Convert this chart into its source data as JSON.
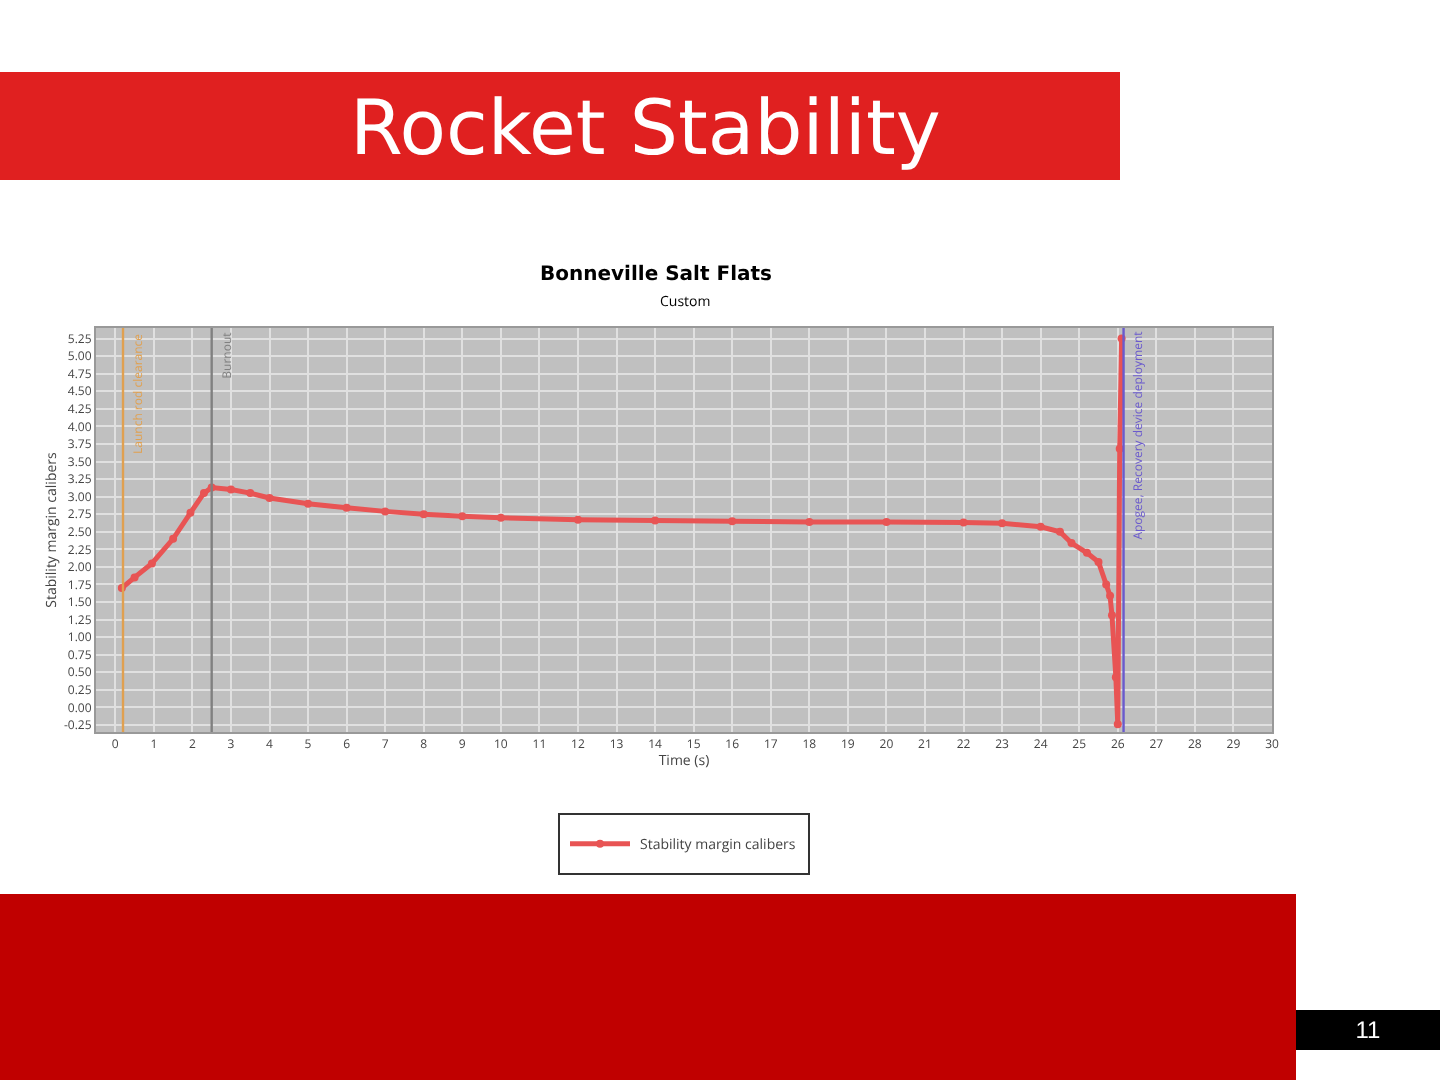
{
  "chart_data": {
    "type": "line",
    "title": "Rocket Stability",
    "subtitle": "Bonneville Salt Flats",
    "xlabel": "Time (s)",
    "ylabel": "Stability margin calibers",
    "annotations": [
      "Custom",
      "11"
    ],
    "x": [
      0.17,
      0.5,
      0.95,
      1.5,
      1.95,
      2.3,
      2.5,
      3,
      3.5,
      4,
      5,
      6,
      7,
      8,
      9,
      10,
      12,
      14,
      16,
      18,
      20,
      22,
      23,
      24,
      24.5,
      24.8,
      25.2,
      25.5,
      25.7,
      25.8,
      25.85,
      25.95,
      26.0,
      26.05,
      26.1
    ],
    "series": [
      {
        "name": "Stability margin calibers",
        "color": "#e85454",
        "values": [
          1.7,
          1.85,
          2.05,
          2.4,
          2.77,
          3.05,
          3.13,
          3.1,
          3.05,
          2.98,
          2.9,
          2.84,
          2.79,
          2.75,
          2.72,
          2.7,
          2.67,
          2.66,
          2.65,
          2.64,
          2.64,
          2.63,
          2.62,
          2.57,
          2.5,
          2.34,
          2.2,
          2.07,
          1.75,
          1.59,
          1.31,
          0.43,
          -0.24,
          3.68,
          5.25
        ]
      }
    ],
    "xlim": [
      -0.5,
      30
    ],
    "xticks": [
      0,
      1,
      2,
      3,
      4,
      5,
      6,
      7,
      8,
      9,
      10,
      11,
      12,
      13,
      14,
      15,
      16,
      17,
      18,
      19,
      20,
      21,
      22,
      23,
      24,
      25,
      26,
      27,
      28,
      29,
      30
    ],
    "ylim": [
      -0.35,
      5.4
    ],
    "yticks": [
      {
        "value": -0.25,
        "label": "-0.25"
      },
      {
        "value": 0,
        "label": "0.00"
      },
      {
        "value": 0.25,
        "label": "0.25"
      },
      {
        "value": 0.5,
        "label": "0.50"
      },
      {
        "value": 0.75,
        "label": "0.75"
      },
      {
        "value": 1,
        "label": "1.00"
      },
      {
        "value": 1.25,
        "label": "1.25"
      },
      {
        "value": 1.5,
        "label": "1.50"
      },
      {
        "value": 1.75,
        "label": "1.75"
      },
      {
        "value": 2,
        "label": "2.00"
      },
      {
        "value": 2.25,
        "label": "2.25"
      },
      {
        "value": 2.5,
        "label": "2.50"
      },
      {
        "value": 2.75,
        "label": "2.75"
      },
      {
        "value": 3,
        "label": "3.00"
      },
      {
        "value": 3.25,
        "label": "3.25"
      },
      {
        "value": 3.5,
        "label": "3.50"
      },
      {
        "value": 3.75,
        "label": "3.75"
      },
      {
        "value": 4,
        "label": "4.00"
      },
      {
        "value": 4.25,
        "label": "4.25"
      },
      {
        "value": 4.5,
        "label": "4.50"
      },
      {
        "value": 4.75,
        "label": "4.75"
      },
      {
        "value": 5,
        "label": "5.00"
      },
      {
        "value": 5.25,
        "label": "5.25"
      }
    ],
    "ref_lines": [
      {
        "axis": "x",
        "value": 0.2,
        "label": "Launch rod clearance",
        "color": "#e0a050"
      },
      {
        "axis": "x",
        "value": 2.5,
        "label": "Burnout",
        "color": "#808080"
      },
      {
        "axis": "x",
        "value": 26.15,
        "label": "Apogee, Recovery device deployment",
        "color": "#6a5acd"
      }
    ],
    "grid": true,
    "legend": "bottom",
    "marker": "circle",
    "line_style": "solid"
  }
}
